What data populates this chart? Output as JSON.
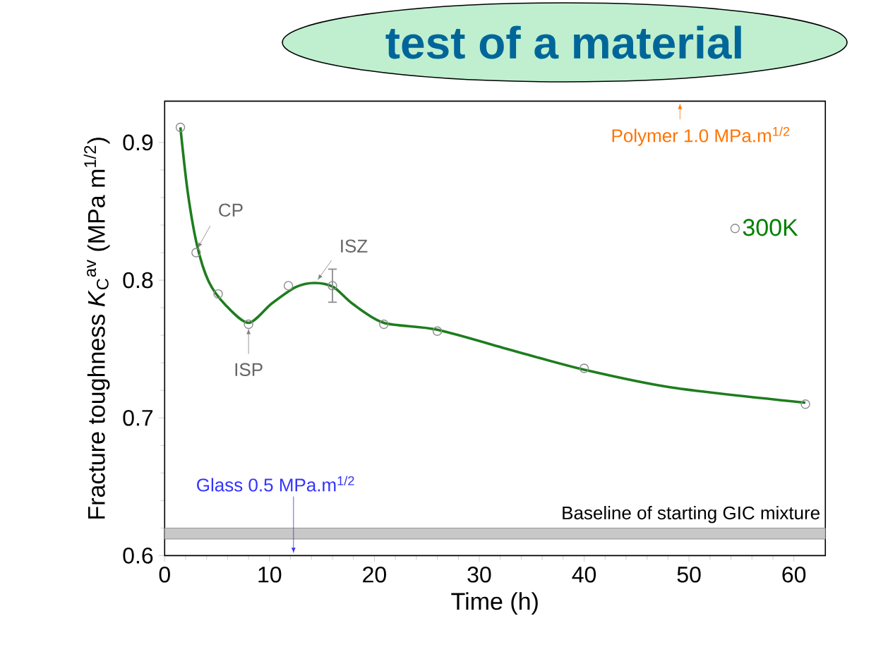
{
  "chart_data": {
    "type": "scatter",
    "title": "test of a material",
    "xlabel": "Time (h)",
    "ylabel": "Fracture toughness *K*$_{C}$$^{av}$ (MPa m$^{1/2}$)",
    "series": [
      {
        "type": "line",
        "marker": "none",
        "color": "#1e7d1e",
        "x": [
          1.5,
          2.2,
          3.1,
          4.2,
          5.8,
          8.0,
          10.2,
          12.5,
          14.3,
          16.1,
          17.9,
          20.9,
          26.0,
          33.6,
          40.0,
          48.4,
          61.1
        ],
        "values": [
          0.911,
          0.864,
          0.825,
          0.799,
          0.782,
          0.769,
          0.783,
          0.795,
          0.798,
          0.795,
          0.783,
          0.769,
          0.764,
          0.748,
          0.735,
          0.722,
          0.711
        ]
      },
      {
        "marker": "circle",
        "name": "300K",
        "color": "#8c8c8c",
        "x": [
          1.5,
          3.0,
          5.1,
          8.0,
          11.8,
          16.0,
          20.9,
          26.0,
          40.0,
          61.1
        ],
        "values": [
          0.911,
          0.82,
          0.79,
          0.768,
          0.796,
          0.796,
          0.768,
          0.763,
          0.736,
          0.71
        ],
        "errors": [
          null,
          null,
          null,
          null,
          null,
          0.012,
          null,
          null,
          null,
          null
        ]
      }
    ],
    "xlim": [
      0,
      63
    ],
    "ylim": [
      0.6,
      0.93
    ],
    "xticks": [
      0,
      10,
      20,
      30,
      40,
      50,
      60
    ],
    "yticks": [
      0.6,
      0.7,
      0.8,
      0.9
    ],
    "bands": [
      {
        "axis": "y",
        "from": 0.612,
        "to": 0.62,
        "label": "Baseline of starting GIC mixture",
        "color": "#c8c8c8"
      }
    ],
    "annotations": [
      {
        "text": "CP",
        "x": 3.0,
        "y": 0.82
      },
      {
        "text": "ISP",
        "x": 8.0,
        "y": 0.768
      },
      {
        "text": "ISZ",
        "x": 14.3,
        "y": 0.798
      },
      "Polymer 1.0 MPa.m$^{1/2}$",
      "Glass 0.5 MPa.m$^{1/2}$"
    ],
    "legend": "top right",
    "grid": false
  }
}
